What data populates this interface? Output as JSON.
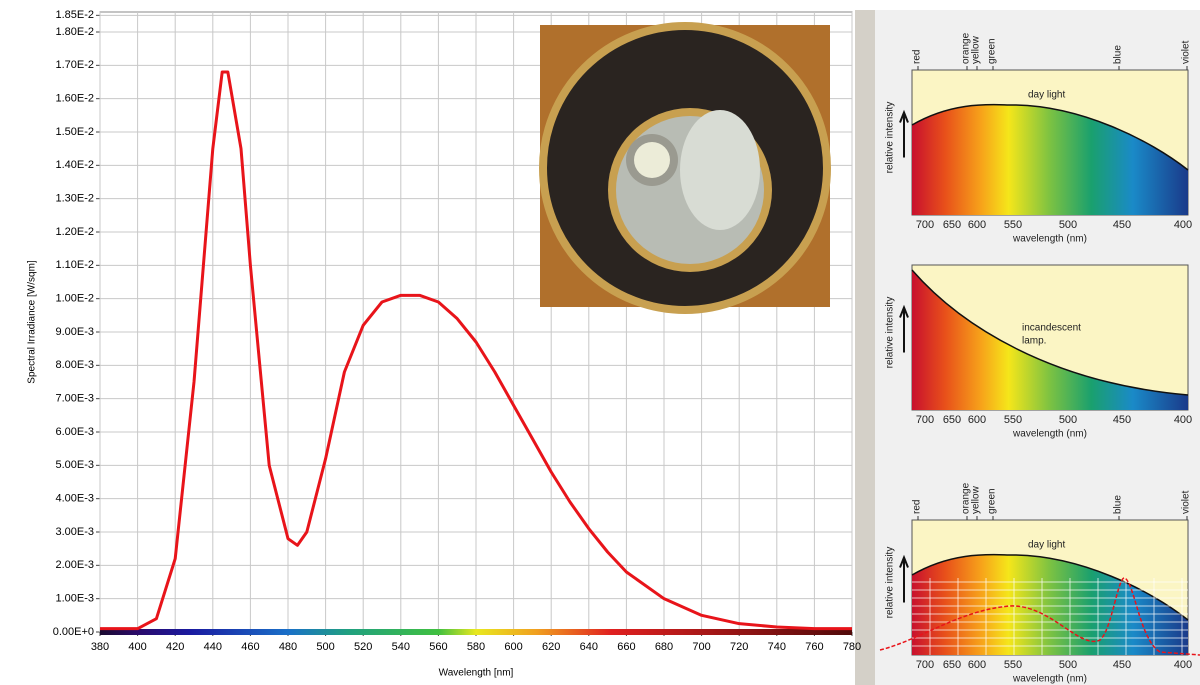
{
  "chart_data": {
    "type": "line",
    "x_label": "Wavelength [nm]",
    "y_label": "Spectral Irradiance [W/sqm]",
    "x": [
      380,
      400,
      410,
      420,
      430,
      440,
      445,
      448,
      455,
      460,
      470,
      480,
      485,
      490,
      500,
      510,
      520,
      530,
      540,
      550,
      560,
      570,
      580,
      590,
      600,
      610,
      620,
      630,
      640,
      650,
      660,
      680,
      700,
      720,
      740,
      760,
      780
    ],
    "series": [
      {
        "color": "#e8141a",
        "values": [
          0.0001,
          0.0001,
          0.0004,
          0.0022,
          0.0075,
          0.0145,
          0.0168,
          0.0168,
          0.0145,
          0.011,
          0.005,
          0.0028,
          0.0026,
          0.003,
          0.0052,
          0.0078,
          0.0092,
          0.0099,
          0.0101,
          0.0101,
          0.0099,
          0.0094,
          0.0087,
          0.0078,
          0.0068,
          0.0058,
          0.0048,
          0.0039,
          0.0031,
          0.0024,
          0.0018,
          0.001,
          0.0005,
          0.00025,
          0.00015,
          0.0001,
          0.0001
        ]
      }
    ],
    "xlim": [
      380,
      780
    ],
    "xticks": [
      380,
      400,
      420,
      440,
      460,
      480,
      500,
      520,
      540,
      560,
      580,
      600,
      620,
      640,
      660,
      680,
      700,
      720,
      740,
      760,
      780
    ],
    "ylim": [
      0,
      0.0186
    ],
    "yticks": [
      {
        "value": 0,
        "label": "0.00E+0"
      },
      {
        "value": 0.001,
        "label": "1.00E-3"
      },
      {
        "value": 0.002,
        "label": "2.00E-3"
      },
      {
        "value": 0.003,
        "label": "3.00E-3"
      },
      {
        "value": 0.004,
        "label": "4.00E-3"
      },
      {
        "value": 0.005,
        "label": "5.00E-3"
      },
      {
        "value": 0.006,
        "label": "6.00E-3"
      },
      {
        "value": 0.007,
        "label": "7.00E-3"
      },
      {
        "value": 0.008,
        "label": "8.00E-3"
      },
      {
        "value": 0.009,
        "label": "9.00E-3"
      },
      {
        "value": 0.01,
        "label": "1.00E-2"
      },
      {
        "value": 0.011,
        "label": "1.10E-2"
      },
      {
        "value": 0.012,
        "label": "1.20E-2"
      },
      {
        "value": 0.013,
        "label": "1.30E-2"
      },
      {
        "value": 0.014,
        "label": "1.40E-2"
      },
      {
        "value": 0.015,
        "label": "1.50E-2"
      },
      {
        "value": 0.016,
        "label": "1.60E-2"
      },
      {
        "value": 0.017,
        "label": "1.70E-2"
      },
      {
        "value": 0.018,
        "label": "1.80E-2"
      },
      {
        "value": 0.0185,
        "label": "1.85E-2"
      }
    ],
    "grid": true
  },
  "side_panels": [
    {
      "color_labels": [
        "red",
        "orange",
        "yellow",
        "green",
        "blue",
        "violet"
      ],
      "curve_label": [
        "day light"
      ],
      "y_label": "relative intensity",
      "x_ticks": [
        "700",
        "650",
        "600",
        "550",
        "500",
        "450",
        "400"
      ],
      "x_label": "wavelength (nm)"
    },
    {
      "curve_label": [
        "incandescent",
        "lamp."
      ],
      "y_label": "relative intensity",
      "x_ticks": [
        "700",
        "650",
        "600",
        "550",
        "500",
        "450",
        "400"
      ],
      "x_label": "wavelength (nm)"
    },
    {
      "color_labels": [
        "red",
        "orange",
        "yellow",
        "green",
        "blue",
        "violet"
      ],
      "curve_label": [
        "day light"
      ],
      "y_label": "relative intensity",
      "x_ticks": [
        "700",
        "650",
        "600",
        "550",
        "500",
        "450",
        "400"
      ],
      "x_label": "wavelength (nm)"
    }
  ]
}
